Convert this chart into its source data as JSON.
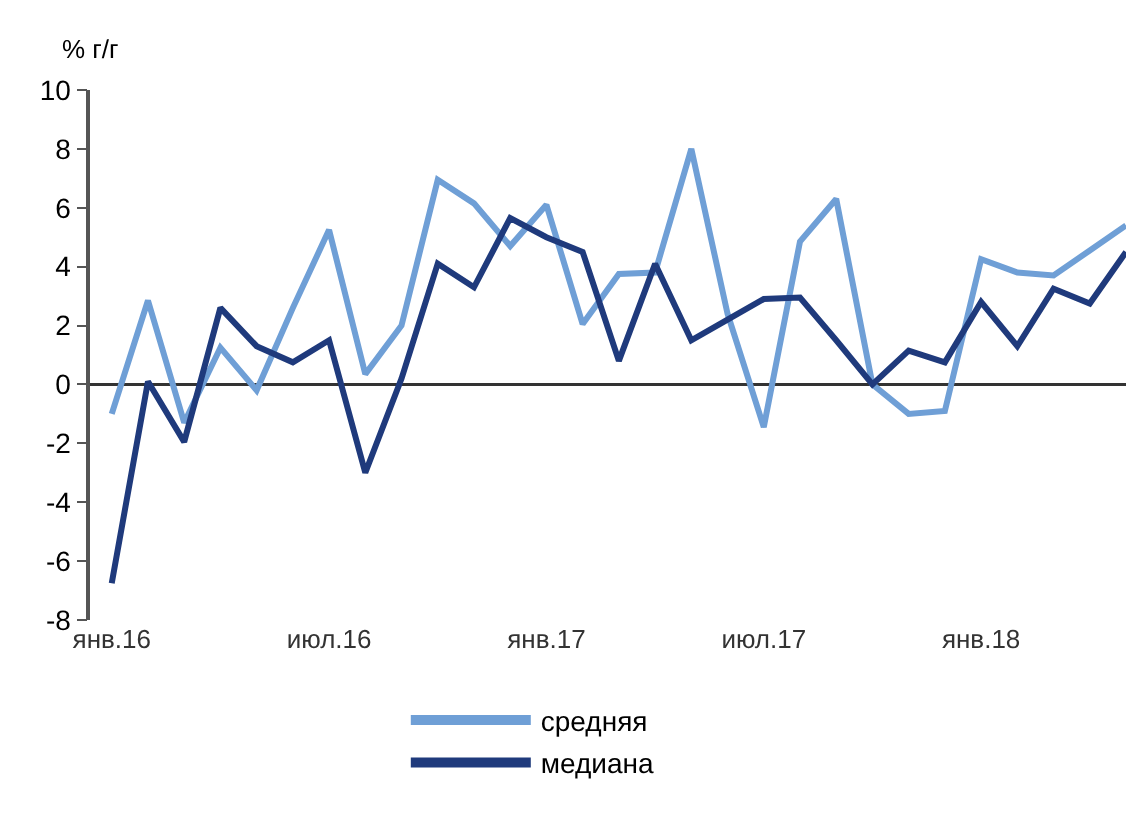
{
  "chart_data": {
    "type": "line",
    "ylabel": "% г/г",
    "categories": [
      "янв.16",
      null,
      null,
      null,
      null,
      null,
      "июл.16",
      null,
      null,
      null,
      null,
      null,
      "янв.17",
      null,
      null,
      null,
      null,
      null,
      "июл.17",
      null,
      null,
      null,
      null,
      null,
      "янв.18",
      null,
      null,
      null,
      null
    ],
    "series": [
      {
        "name": "средняя",
        "color": "#6f9fd6",
        "values": [
          -1.0,
          2.85,
          -1.3,
          1.25,
          -0.2,
          2.6,
          5.25,
          0.35,
          2.0,
          6.95,
          6.15,
          4.7,
          6.1,
          2.05,
          3.75,
          3.8,
          8.0,
          2.4,
          -1.45,
          4.85,
          6.3,
          0.0,
          -1.0,
          -0.9,
          4.25,
          3.8,
          3.7,
          4.55,
          5.4
        ]
      },
      {
        "name": "медиана",
        "color": "#1f3a7c",
        "values": [
          -6.75,
          0.1,
          -1.95,
          2.6,
          1.3,
          0.75,
          1.5,
          -3.0,
          0.2,
          4.1,
          3.3,
          5.65,
          5.0,
          4.5,
          0.8,
          4.1,
          1.5,
          2.2,
          2.9,
          2.95,
          1.5,
          0.0,
          1.15,
          0.75,
          2.8,
          1.3,
          3.25,
          2.75,
          4.5
        ]
      }
    ],
    "ylim": [
      -8,
      10
    ],
    "yticks": [
      -8,
      -6,
      -4,
      -2,
      0,
      2,
      4,
      6,
      8,
      10
    ],
    "ref_lines": [
      {
        "axis": "y",
        "value": 0,
        "color": "#333333"
      }
    ],
    "legend": "bottom",
    "marker": "none",
    "line_style": "solid"
  }
}
